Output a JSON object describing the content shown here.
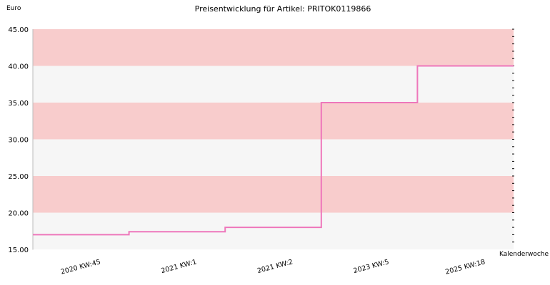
{
  "chart_data": {
    "type": "line",
    "title": "Preisentwicklung für Artikel: PRITOK0119866",
    "ylabel": "Euro",
    "xlabel": "Kalenderwoche",
    "ylim": [
      15,
      45
    ],
    "yticks": [
      "15.00",
      "20.00",
      "25.00",
      "30.00",
      "35.00",
      "40.00",
      "45.00"
    ],
    "categories": [
      "2020 KW:45",
      "2021 KW:1",
      "2021 KW:2",
      "2023 KW:5",
      "2025 KW:18"
    ],
    "series": [
      {
        "values": [
          17.0,
          17.4,
          18.0,
          35.0,
          40.0
        ]
      }
    ],
    "grid": true,
    "colors": {
      "band_alt": "#f8cccc",
      "band_base": "#f6f6f6",
      "line": "#ee77bb",
      "axis": "#000000"
    }
  }
}
